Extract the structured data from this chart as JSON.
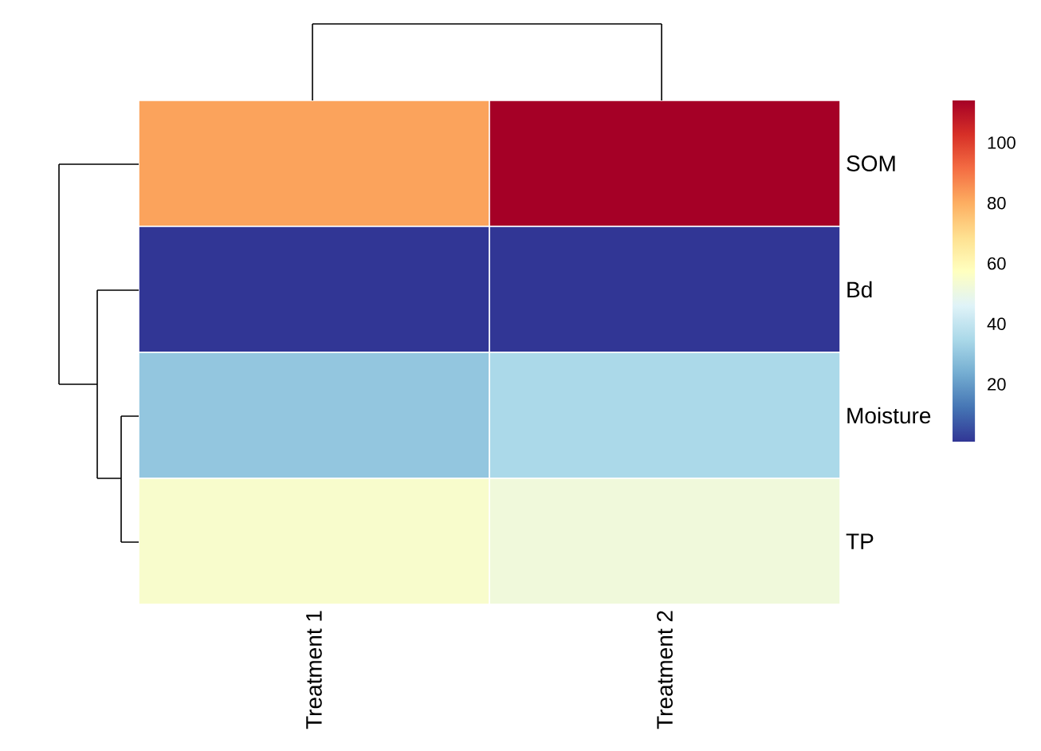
{
  "chart_data": {
    "type": "heatmap",
    "categories": [
      "Treatment 1",
      "Treatment 2"
    ],
    "y_categories": [
      "SOM",
      "Bd",
      "Moisture",
      "TP"
    ],
    "cells": [
      [
        82,
        114
      ],
      [
        1,
        1
      ],
      [
        30,
        35
      ],
      [
        55,
        52
      ]
    ],
    "clim": [
      1,
      114
    ],
    "cticks": [
      20,
      40,
      60,
      80,
      100
    ]
  }
}
